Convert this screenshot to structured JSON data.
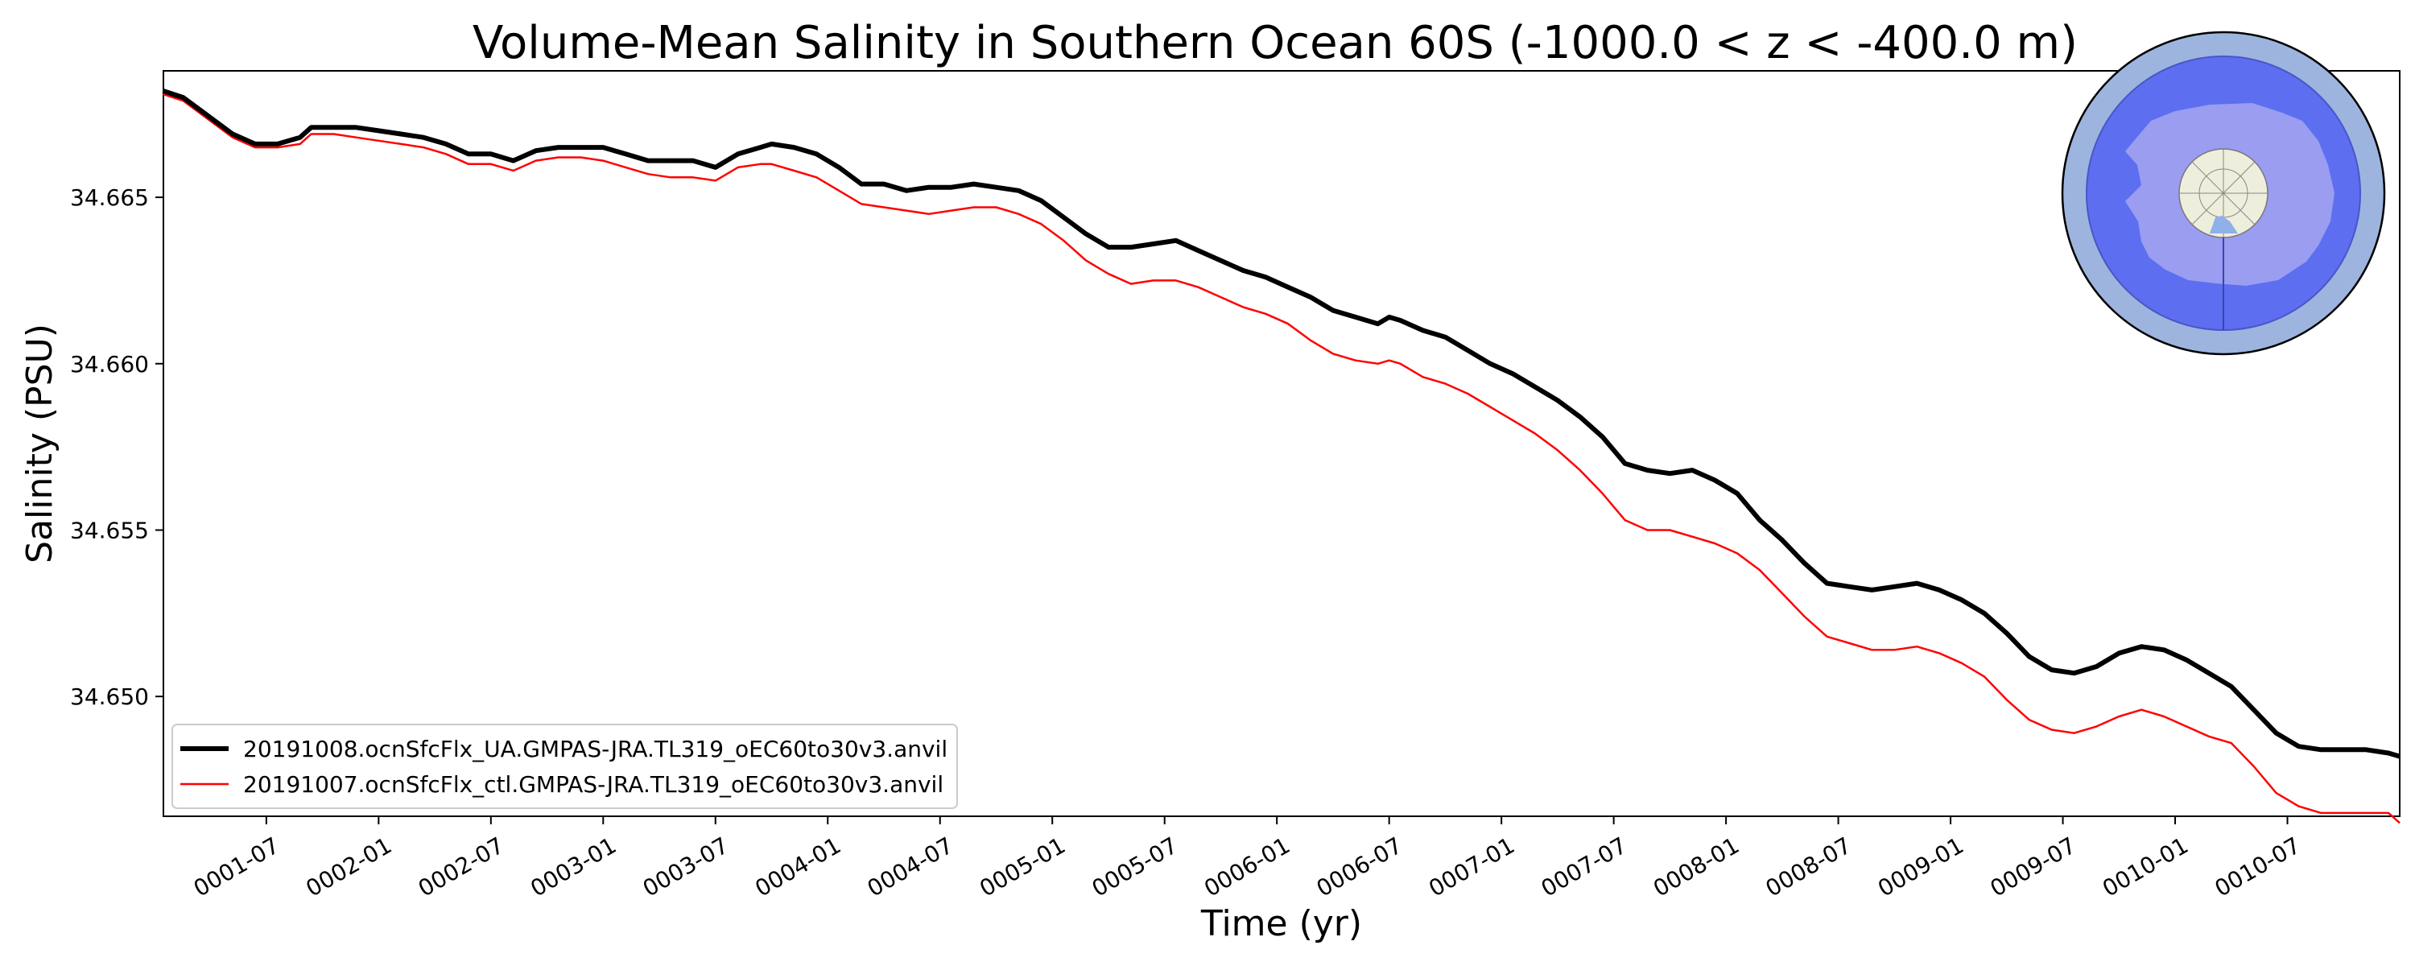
{
  "chart_data": {
    "type": "line",
    "title": "Volume-Mean Salinity in Southern Ocean 60S (-1000.0 < z < -400.0 m)",
    "xlabel": "Time (yr)",
    "ylabel": "Salinity (PSU)",
    "x_unit": "years",
    "xlim": [
      0.0417,
      10.0
    ],
    "ylim": [
      34.6464,
      34.6688
    ],
    "xticks": [
      {
        "value": 0.5,
        "label": "0001-07"
      },
      {
        "value": 1.0,
        "label": "0002-01"
      },
      {
        "value": 1.5,
        "label": "0002-07"
      },
      {
        "value": 2.0,
        "label": "0003-01"
      },
      {
        "value": 2.5,
        "label": "0003-07"
      },
      {
        "value": 3.0,
        "label": "0004-01"
      },
      {
        "value": 3.5,
        "label": "0004-07"
      },
      {
        "value": 4.0,
        "label": "0005-01"
      },
      {
        "value": 4.5,
        "label": "0005-07"
      },
      {
        "value": 5.0,
        "label": "0006-01"
      },
      {
        "value": 5.5,
        "label": "0006-07"
      },
      {
        "value": 6.0,
        "label": "0007-01"
      },
      {
        "value": 6.5,
        "label": "0007-07"
      },
      {
        "value": 7.0,
        "label": "0008-01"
      },
      {
        "value": 7.5,
        "label": "0008-07"
      },
      {
        "value": 8.0,
        "label": "0009-01"
      },
      {
        "value": 8.5,
        "label": "0009-07"
      },
      {
        "value": 9.0,
        "label": "0010-01"
      },
      {
        "value": 9.5,
        "label": "0010-07"
      }
    ],
    "yticks": [
      {
        "value": 34.65,
        "label": "34.650"
      },
      {
        "value": 34.655,
        "label": "34.655"
      },
      {
        "value": 34.66,
        "label": "34.660"
      },
      {
        "value": 34.665,
        "label": "34.665"
      }
    ],
    "grid": false,
    "legend_position": "lower-left",
    "series": [
      {
        "name": "20191008.ocnSfcFlx_UA.GMPAS-JRA.TL319_oEC60to30v3.anvil",
        "color": "#000000",
        "line": "thick",
        "points": [
          [
            0.04,
            34.6682
          ],
          [
            0.13,
            34.668
          ],
          [
            0.25,
            34.6674
          ],
          [
            0.35,
            34.6669
          ],
          [
            0.45,
            34.6666
          ],
          [
            0.55,
            34.6666
          ],
          [
            0.65,
            34.6668
          ],
          [
            0.7,
            34.6671
          ],
          [
            0.8,
            34.6671
          ],
          [
            0.9,
            34.6671
          ],
          [
            1.0,
            34.667
          ],
          [
            1.1,
            34.6669
          ],
          [
            1.2,
            34.6668
          ],
          [
            1.3,
            34.6666
          ],
          [
            1.4,
            34.6663
          ],
          [
            1.5,
            34.6663
          ],
          [
            1.6,
            34.6661
          ],
          [
            1.7,
            34.6664
          ],
          [
            1.8,
            34.6665
          ],
          [
            1.9,
            34.6665
          ],
          [
            2.0,
            34.6665
          ],
          [
            2.1,
            34.6663
          ],
          [
            2.2,
            34.6661
          ],
          [
            2.3,
            34.6661
          ],
          [
            2.4,
            34.6661
          ],
          [
            2.5,
            34.6659
          ],
          [
            2.6,
            34.6663
          ],
          [
            2.7,
            34.6665
          ],
          [
            2.75,
            34.6666
          ],
          [
            2.85,
            34.6665
          ],
          [
            2.95,
            34.6663
          ],
          [
            3.05,
            34.6659
          ],
          [
            3.15,
            34.6654
          ],
          [
            3.25,
            34.6654
          ],
          [
            3.35,
            34.6652
          ],
          [
            3.45,
            34.6653
          ],
          [
            3.55,
            34.6653
          ],
          [
            3.65,
            34.6654
          ],
          [
            3.75,
            34.6653
          ],
          [
            3.85,
            34.6652
          ],
          [
            3.95,
            34.6649
          ],
          [
            4.05,
            34.6644
          ],
          [
            4.15,
            34.6639
          ],
          [
            4.25,
            34.6635
          ],
          [
            4.35,
            34.6635
          ],
          [
            4.45,
            34.6636
          ],
          [
            4.55,
            34.6637
          ],
          [
            4.65,
            34.6634
          ],
          [
            4.75,
            34.6631
          ],
          [
            4.85,
            34.6628
          ],
          [
            4.95,
            34.6626
          ],
          [
            5.05,
            34.6623
          ],
          [
            5.15,
            34.662
          ],
          [
            5.25,
            34.6616
          ],
          [
            5.35,
            34.6614
          ],
          [
            5.45,
            34.6612
          ],
          [
            5.5,
            34.6614
          ],
          [
            5.55,
            34.6613
          ],
          [
            5.65,
            34.661
          ],
          [
            5.75,
            34.6608
          ],
          [
            5.85,
            34.6604
          ],
          [
            5.95,
            34.66
          ],
          [
            6.05,
            34.6597
          ],
          [
            6.15,
            34.6593
          ],
          [
            6.25,
            34.6589
          ],
          [
            6.35,
            34.6584
          ],
          [
            6.45,
            34.6578
          ],
          [
            6.55,
            34.657
          ],
          [
            6.65,
            34.6568
          ],
          [
            6.75,
            34.6567
          ],
          [
            6.85,
            34.6568
          ],
          [
            6.95,
            34.6565
          ],
          [
            7.05,
            34.6561
          ],
          [
            7.15,
            34.6553
          ],
          [
            7.25,
            34.6547
          ],
          [
            7.35,
            34.654
          ],
          [
            7.45,
            34.6534
          ],
          [
            7.55,
            34.6533
          ],
          [
            7.65,
            34.6532
          ],
          [
            7.75,
            34.6533
          ],
          [
            7.85,
            34.6534
          ],
          [
            7.95,
            34.6532
          ],
          [
            8.05,
            34.6529
          ],
          [
            8.15,
            34.6525
          ],
          [
            8.25,
            34.6519
          ],
          [
            8.35,
            34.6512
          ],
          [
            8.45,
            34.6508
          ],
          [
            8.55,
            34.6507
          ],
          [
            8.65,
            34.6509
          ],
          [
            8.75,
            34.6513
          ],
          [
            8.85,
            34.6515
          ],
          [
            8.95,
            34.6514
          ],
          [
            9.05,
            34.6511
          ],
          [
            9.15,
            34.6507
          ],
          [
            9.25,
            34.6503
          ],
          [
            9.35,
            34.6496
          ],
          [
            9.45,
            34.6489
          ],
          [
            9.55,
            34.6485
          ],
          [
            9.65,
            34.6484
          ],
          [
            9.75,
            34.6484
          ],
          [
            9.85,
            34.6484
          ],
          [
            9.95,
            34.6483
          ],
          [
            10.0,
            34.6482
          ]
        ]
      },
      {
        "name": "20191007.ocnSfcFlx_ctl.GMPAS-JRA.TL319_oEC60to30v3.anvil",
        "color": "#ff0000",
        "line": "thin",
        "points": [
          [
            0.04,
            34.6681
          ],
          [
            0.13,
            34.6679
          ],
          [
            0.25,
            34.6673
          ],
          [
            0.35,
            34.6668
          ],
          [
            0.45,
            34.6665
          ],
          [
            0.55,
            34.6665
          ],
          [
            0.65,
            34.6666
          ],
          [
            0.7,
            34.6669
          ],
          [
            0.8,
            34.6669
          ],
          [
            0.9,
            34.6668
          ],
          [
            1.0,
            34.6667
          ],
          [
            1.1,
            34.6666
          ],
          [
            1.2,
            34.6665
          ],
          [
            1.3,
            34.6663
          ],
          [
            1.4,
            34.666
          ],
          [
            1.5,
            34.666
          ],
          [
            1.6,
            34.6658
          ],
          [
            1.7,
            34.6661
          ],
          [
            1.8,
            34.6662
          ],
          [
            1.9,
            34.6662
          ],
          [
            2.0,
            34.6661
          ],
          [
            2.1,
            34.6659
          ],
          [
            2.2,
            34.6657
          ],
          [
            2.3,
            34.6656
          ],
          [
            2.4,
            34.6656
          ],
          [
            2.5,
            34.6655
          ],
          [
            2.6,
            34.6659
          ],
          [
            2.7,
            34.666
          ],
          [
            2.75,
            34.666
          ],
          [
            2.85,
            34.6658
          ],
          [
            2.95,
            34.6656
          ],
          [
            3.05,
            34.6652
          ],
          [
            3.15,
            34.6648
          ],
          [
            3.25,
            34.6647
          ],
          [
            3.35,
            34.6646
          ],
          [
            3.45,
            34.6645
          ],
          [
            3.55,
            34.6646
          ],
          [
            3.65,
            34.6647
          ],
          [
            3.75,
            34.6647
          ],
          [
            3.85,
            34.6645
          ],
          [
            3.95,
            34.6642
          ],
          [
            4.05,
            34.6637
          ],
          [
            4.15,
            34.6631
          ],
          [
            4.25,
            34.6627
          ],
          [
            4.35,
            34.6624
          ],
          [
            4.45,
            34.6625
          ],
          [
            4.55,
            34.6625
          ],
          [
            4.65,
            34.6623
          ],
          [
            4.75,
            34.662
          ],
          [
            4.85,
            34.6617
          ],
          [
            4.95,
            34.6615
          ],
          [
            5.05,
            34.6612
          ],
          [
            5.15,
            34.6607
          ],
          [
            5.25,
            34.6603
          ],
          [
            5.35,
            34.6601
          ],
          [
            5.45,
            34.66
          ],
          [
            5.5,
            34.6601
          ],
          [
            5.55,
            34.66
          ],
          [
            5.65,
            34.6596
          ],
          [
            5.75,
            34.6594
          ],
          [
            5.85,
            34.6591
          ],
          [
            5.95,
            34.6587
          ],
          [
            6.05,
            34.6583
          ],
          [
            6.15,
            34.6579
          ],
          [
            6.25,
            34.6574
          ],
          [
            6.35,
            34.6568
          ],
          [
            6.45,
            34.6561
          ],
          [
            6.55,
            34.6553
          ],
          [
            6.65,
            34.655
          ],
          [
            6.75,
            34.655
          ],
          [
            6.85,
            34.6548
          ],
          [
            6.95,
            34.6546
          ],
          [
            7.05,
            34.6543
          ],
          [
            7.15,
            34.6538
          ],
          [
            7.25,
            34.6531
          ],
          [
            7.35,
            34.6524
          ],
          [
            7.45,
            34.6518
          ],
          [
            7.55,
            34.6516
          ],
          [
            7.65,
            34.6514
          ],
          [
            7.75,
            34.6514
          ],
          [
            7.85,
            34.6515
          ],
          [
            7.95,
            34.6513
          ],
          [
            8.05,
            34.651
          ],
          [
            8.15,
            34.6506
          ],
          [
            8.25,
            34.6499
          ],
          [
            8.35,
            34.6493
          ],
          [
            8.45,
            34.649
          ],
          [
            8.55,
            34.6489
          ],
          [
            8.65,
            34.6491
          ],
          [
            8.75,
            34.6494
          ],
          [
            8.85,
            34.6496
          ],
          [
            8.95,
            34.6494
          ],
          [
            9.05,
            34.6491
          ],
          [
            9.15,
            34.6488
          ],
          [
            9.25,
            34.6486
          ],
          [
            9.35,
            34.6479
          ],
          [
            9.45,
            34.6471
          ],
          [
            9.55,
            34.6467
          ],
          [
            9.65,
            34.6465
          ],
          [
            9.75,
            34.6465
          ],
          [
            9.85,
            34.6465
          ],
          [
            9.95,
            34.6465
          ],
          [
            10.0,
            34.6462
          ]
        ]
      }
    ]
  },
  "inset_map": {
    "region": "Southern Ocean 60S",
    "projection": "south-polar-stereographic",
    "colors": {
      "outer_ring": "#9db4de",
      "ocean_region": "#5d6ff0",
      "land": "#9a9df0",
      "pole_cap": "#eeeedd"
    }
  }
}
